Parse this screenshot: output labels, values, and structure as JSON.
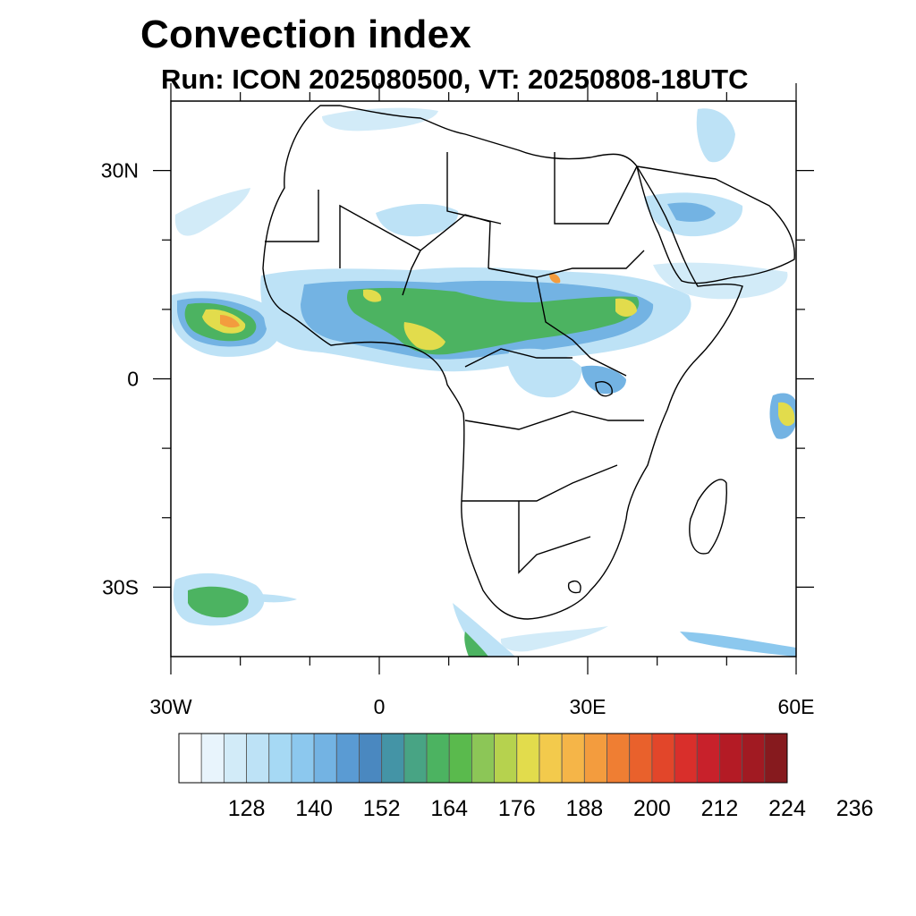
{
  "title": "Convection index",
  "subtitle": "Run: ICON 2025080500,  VT: 20250808-18UTC",
  "map": {
    "lon_range": [
      -30,
      60
    ],
    "lat_range": [
      -40,
      40
    ],
    "lat_labels": [
      {
        "lat": 30,
        "text": "30N"
      },
      {
        "lat": 0,
        "text": "0"
      },
      {
        "lat": -30,
        "text": "30S"
      }
    ],
    "lon_labels": [
      {
        "lon": -30,
        "text": "30W"
      },
      {
        "lon": 0,
        "text": "0"
      },
      {
        "lon": 30,
        "text": "30E"
      },
      {
        "lon": 60,
        "text": "60E"
      }
    ]
  },
  "colorbar": {
    "labels": [
      "128",
      "140",
      "152",
      "164",
      "176",
      "188",
      "200",
      "212",
      "224",
      "236"
    ],
    "colors": [
      "#ffffff",
      "#e8f4fc",
      "#d2ebf8",
      "#bde2f6",
      "#a6d9f4",
      "#8cc8ee",
      "#73b3e3",
      "#5a9bd3",
      "#4a88c0",
      "#4494a6",
      "#48a484",
      "#4cb361",
      "#5aba4d",
      "#8cc657",
      "#b6d24e",
      "#e2dc4c",
      "#f3ca4c",
      "#f5b548",
      "#f39c3e",
      "#ef7e33",
      "#e9612c",
      "#e2462a",
      "#d92f2b",
      "#c8212b",
      "#b41b25",
      "#a11a22",
      "#861a1e"
    ]
  },
  "colors": {
    "coastline": "#000000",
    "light": "#bde2f6",
    "mid": "#73b3e3",
    "green": "#4cb361",
    "yellow": "#e2dc4c",
    "orange": "#f39c3e",
    "red": "#d92f2b"
  }
}
